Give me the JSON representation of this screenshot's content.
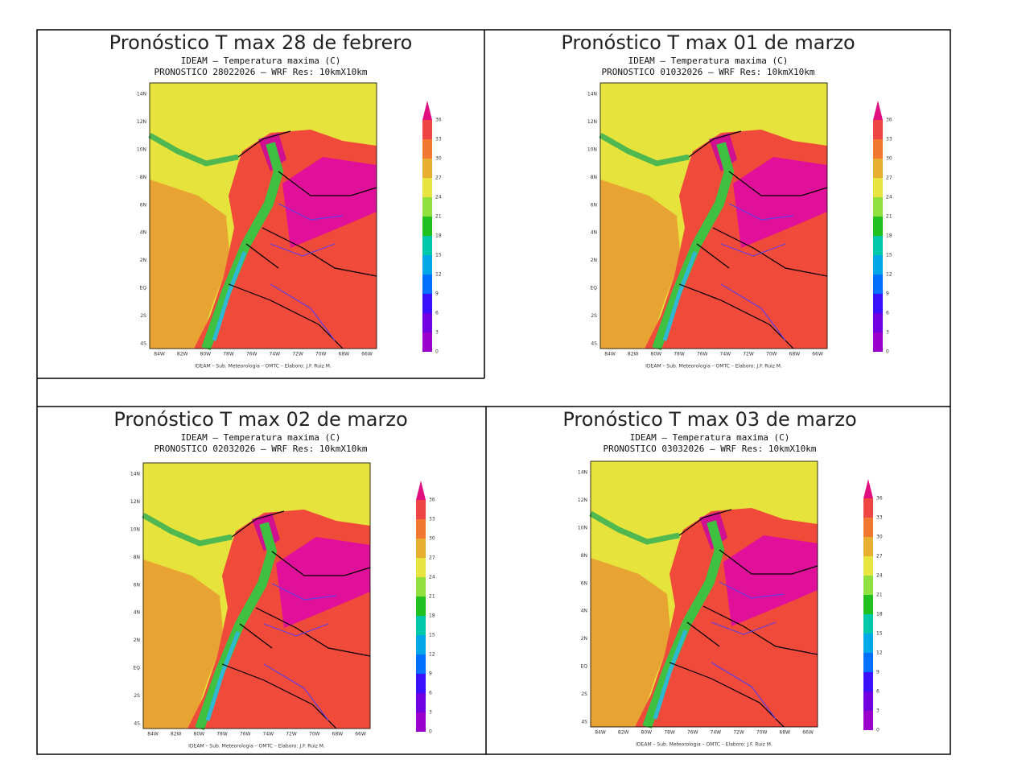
{
  "panels": [
    {
      "title": "Pronóstico T max 28 de febrero",
      "subtitle": "IDEAM – Temperatura maxima (C)",
      "run": "PRONOSTICO 28022026 – WRF Res: 10kmX10km"
    },
    {
      "title": "Pronóstico T max 01 de marzo",
      "subtitle": "IDEAM – Temperatura maxima (C)",
      "run": "PRONOSTICO 01032026 – WRF Res: 10kmX10km"
    },
    {
      "title": "Pronóstico T max 02 de marzo",
      "subtitle": "IDEAM – Temperatura maxima (C)",
      "run": "PRONOSTICO 02032026 – WRF Res: 10kmX10km"
    },
    {
      "title": "Pronóstico T max 03 de marzo",
      "subtitle": "IDEAM – Temperatura maxima (C)",
      "run": "PRONOSTICO 03032026 – WRF Res: 10kmX10km"
    }
  ],
  "colorbar_labels": [
    "0",
    "3",
    "6",
    "9",
    "12",
    "15",
    "18",
    "21",
    "24",
    "27",
    "30",
    "33",
    "36"
  ],
  "lat_labels": [
    "14N",
    "12N",
    "10N",
    "8N",
    "6N",
    "4N",
    "2N",
    "EQ",
    "2S",
    "4S"
  ],
  "lon_labels": [
    "84W",
    "82W",
    "80W",
    "78W",
    "76W",
    "74W",
    "72W",
    "70W",
    "68W",
    "66W"
  ],
  "footer": "IDEAM – Sub. Meteorologia – OMTC – Elaboro: J.F. Ruiz M."
}
